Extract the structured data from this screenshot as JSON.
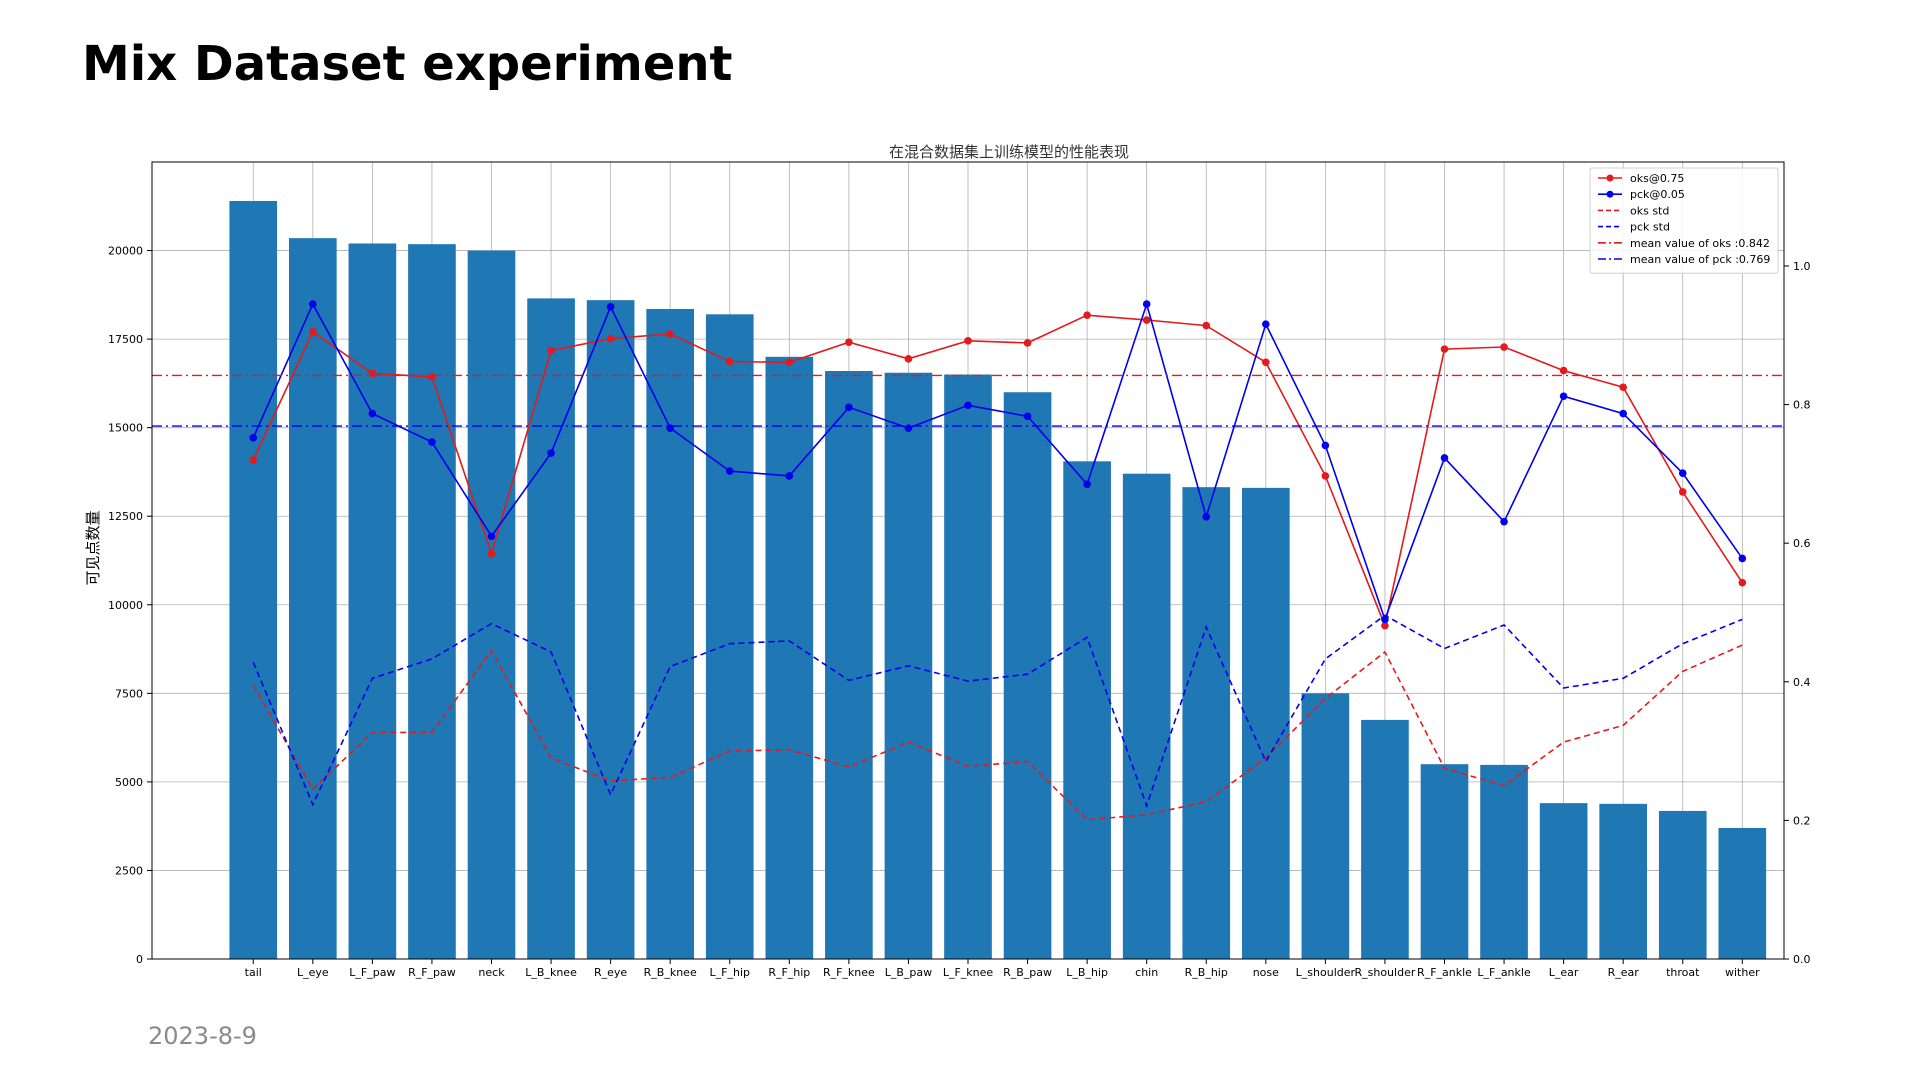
{
  "slide": {
    "title": "Mix Dataset experiment",
    "date": "2023-8-9"
  },
  "chart_data": {
    "type": "bar",
    "title": "在混合数据集上训练模型的性能表现",
    "xlabel": "",
    "ylabel": "可见点数量",
    "y2label": "",
    "ylim": [
      0,
      22500
    ],
    "y2lim": [
      0,
      1.15
    ],
    "yticks": [
      0,
      2500,
      5000,
      7500,
      10000,
      12500,
      15000,
      17500,
      20000
    ],
    "y2ticks": [
      0.0,
      0.2,
      0.4,
      0.6,
      0.8,
      1.0
    ],
    "grid": true,
    "legend_position": "top-right",
    "bar_color": "#1f77b4",
    "categories": [
      "tail",
      "L_eye",
      "L_F_paw",
      "R_F_paw",
      "neck",
      "L_B_knee",
      "R_eye",
      "R_B_knee",
      "L_F_hip",
      "R_F_hip",
      "R_F_knee",
      "L_B_paw",
      "L_F_knee",
      "R_B_paw",
      "L_B_hip",
      "chin",
      "R_B_hip",
      "nose",
      "L_shoulder",
      "R_shoulder",
      "R_F_ankle",
      "L_F_ankle",
      "L_ear",
      "R_ear",
      "throat",
      "wither"
    ],
    "values": [
      21400,
      20350,
      20200,
      20180,
      20000,
      18650,
      18600,
      18350,
      18200,
      17000,
      16600,
      16550,
      16500,
      16000,
      14050,
      13700,
      13320,
      13300,
      7500,
      6750,
      5500,
      5480,
      4400,
      4380,
      4180,
      3700
    ],
    "series": [
      {
        "name": "oks@0.75",
        "color": "#e41a1c",
        "style": "solid-marker",
        "axis": "right",
        "values": [
          0.72,
          0.905,
          0.845,
          0.84,
          0.585,
          0.878,
          0.895,
          0.902,
          0.862,
          0.861,
          0.89,
          0.866,
          0.892,
          0.889,
          0.929,
          0.922,
          0.914,
          0.861,
          0.697,
          0.481,
          0.88,
          0.883,
          0.849,
          0.825,
          0.674,
          0.543
        ]
      },
      {
        "name": "pck@0.05",
        "color": "#0000ee",
        "style": "solid-marker",
        "axis": "right",
        "values": [
          0.752,
          0.945,
          0.787,
          0.746,
          0.61,
          0.73,
          0.941,
          0.766,
          0.704,
          0.697,
          0.796,
          0.766,
          0.799,
          0.783,
          0.685,
          0.945,
          0.638,
          0.916,
          0.741,
          0.49,
          0.723,
          0.631,
          0.812,
          0.787,
          0.701,
          0.578
        ]
      },
      {
        "name": "oks std",
        "color": "#e41a1c",
        "style": "dashed",
        "axis": "right",
        "values": [
          0.395,
          0.245,
          0.327,
          0.327,
          0.445,
          0.29,
          0.257,
          0.262,
          0.3,
          0.302,
          0.277,
          0.313,
          0.278,
          0.285,
          0.201,
          0.208,
          0.227,
          0.29,
          0.376,
          0.443,
          0.275,
          0.25,
          0.313,
          0.337,
          0.415,
          0.453
        ]
      },
      {
        "name": "pck std",
        "color": "#0000ee",
        "style": "dashed",
        "axis": "right",
        "values": [
          0.428,
          0.223,
          0.405,
          0.433,
          0.484,
          0.443,
          0.237,
          0.422,
          0.455,
          0.459,
          0.402,
          0.423,
          0.401,
          0.411,
          0.464,
          0.221,
          0.479,
          0.285,
          0.433,
          0.496,
          0.448,
          0.482,
          0.391,
          0.405,
          0.455,
          0.49
        ]
      },
      {
        "name": "mean value of oks :0.842",
        "color": "#e41a1c",
        "style": "dashdot-hline",
        "axis": "right",
        "value": 0.842
      },
      {
        "name": "mean value of pck :0.769",
        "color": "#0000ee",
        "style": "dashdot-hline",
        "axis": "right",
        "value": 0.769
      }
    ]
  }
}
